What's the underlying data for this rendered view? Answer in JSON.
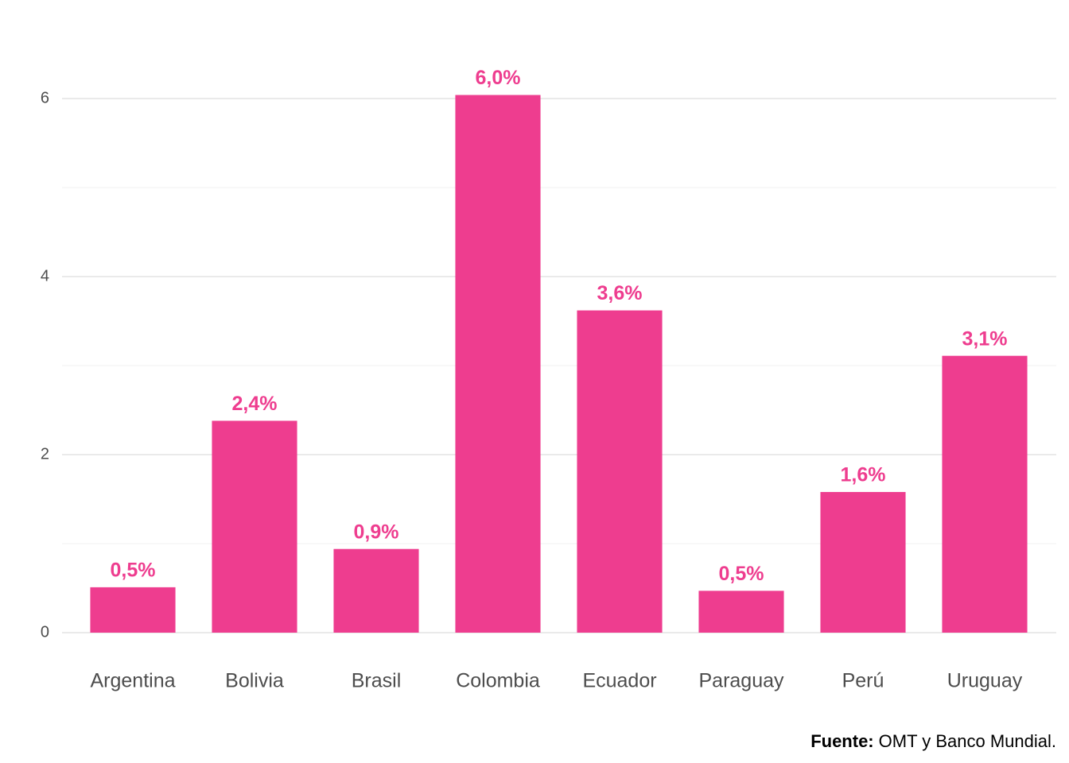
{
  "chart_data": {
    "type": "bar",
    "categories": [
      "Argentina",
      "Bolivia",
      "Brasil",
      "Colombia",
      "Ecuador",
      "Paraguay",
      "Perú",
      "Uruguay"
    ],
    "values": [
      0.51,
      2.38,
      0.94,
      6.04,
      3.62,
      0.47,
      1.58,
      3.11
    ],
    "value_labels": [
      "0,5%",
      "2,4%",
      "0,9%",
      "6,0%",
      "3,6%",
      "0,5%",
      "1,6%",
      "3,1%"
    ],
    "color": "#ee3d8f",
    "ylim": [
      -0.3,
      6.3
    ],
    "yticks": [
      0,
      2,
      4,
      6
    ],
    "yminor": [
      1,
      3,
      5
    ],
    "grid": true,
    "source": {
      "label": "Fuente:",
      "text": "OMT y Banco Mundial."
    }
  }
}
